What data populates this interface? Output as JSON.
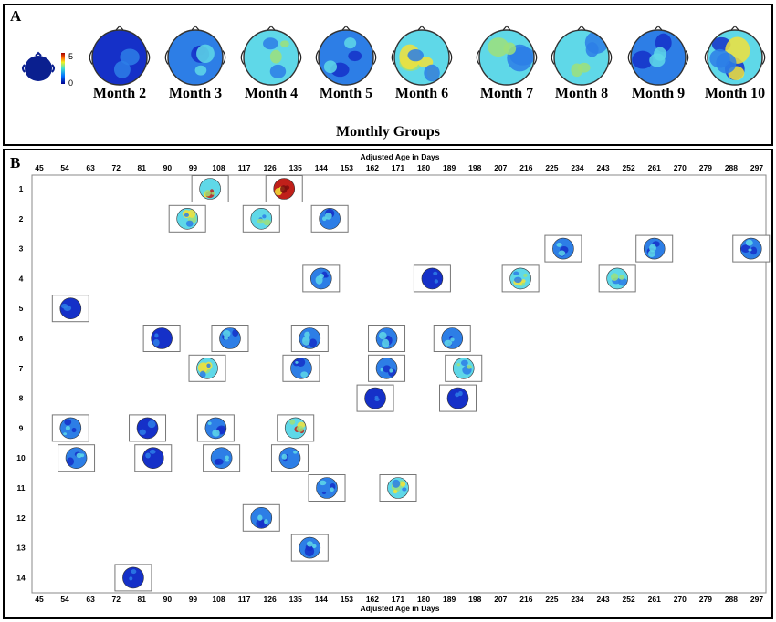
{
  "panel_a": {
    "letter": "A",
    "colorbar": {
      "max_label": "5",
      "min_label": "0"
    },
    "months": [
      {
        "label": "Month 2",
        "palette": "deep"
      },
      {
        "label": "Month 3",
        "palette": "blue"
      },
      {
        "label": "Month 4",
        "palette": "cyan"
      },
      {
        "label": "Month 5",
        "palette": "blue"
      },
      {
        "label": "Month 6",
        "palette": "yellow"
      },
      {
        "label": "Month 7",
        "palette": "cyan"
      },
      {
        "label": "Month 8",
        "palette": "cyan"
      },
      {
        "label": "Month 9",
        "palette": "blue"
      },
      {
        "label": "Month 10",
        "palette": "mixed"
      }
    ],
    "group_title": "Monthly Groups"
  },
  "panel_b": {
    "letter": "B",
    "top_axis_label": "Adjusted Age in Days",
    "bottom_axis_label": "Adjusted Age in Days",
    "x_ticks": [
      45,
      54,
      63,
      72,
      81,
      90,
      99,
      108,
      117,
      126,
      135,
      144,
      153,
      162,
      171,
      180,
      189,
      198,
      207,
      216,
      225,
      234,
      243,
      252,
      261,
      270,
      279,
      288,
      297
    ],
    "y_ticks": [
      1,
      2,
      3,
      4,
      5,
      6,
      7,
      8,
      9,
      10,
      11,
      12,
      13,
      14
    ],
    "colors": {
      "red": "#c0201a",
      "yellow": "#f2e23a",
      "green": "#9ee07a",
      "cyan": "#5fd8e8",
      "blue": "#2d7ee6",
      "navy": "#1530c8"
    }
  },
  "chart_data": {
    "type": "scatter",
    "xlabel": "Adjusted Age in Days",
    "ylabel": "",
    "xlim": [
      45,
      297
    ],
    "ylim": [
      1,
      14
    ],
    "points": [
      {
        "x": 105,
        "y": 1,
        "palette": "hot"
      },
      {
        "x": 131,
        "y": 1,
        "palette": "red"
      },
      {
        "x": 97,
        "y": 2,
        "palette": "yellow"
      },
      {
        "x": 123,
        "y": 2,
        "palette": "cyan"
      },
      {
        "x": 147,
        "y": 2,
        "palette": "blue"
      },
      {
        "x": 229,
        "y": 3,
        "palette": "blue"
      },
      {
        "x": 261,
        "y": 3,
        "palette": "blue"
      },
      {
        "x": 295,
        "y": 3,
        "palette": "blue"
      },
      {
        "x": 144,
        "y": 4,
        "palette": "blue"
      },
      {
        "x": 183,
        "y": 4,
        "palette": "deep"
      },
      {
        "x": 214,
        "y": 4,
        "palette": "yellow"
      },
      {
        "x": 248,
        "y": 4,
        "palette": "cyan"
      },
      {
        "x": 56,
        "y": 5,
        "palette": "deep"
      },
      {
        "x": 88,
        "y": 6,
        "palette": "deep"
      },
      {
        "x": 112,
        "y": 6,
        "palette": "blue"
      },
      {
        "x": 140,
        "y": 6,
        "palette": "blue"
      },
      {
        "x": 167,
        "y": 6,
        "palette": "blue"
      },
      {
        "x": 190,
        "y": 6,
        "palette": "blue"
      },
      {
        "x": 104,
        "y": 7,
        "palette": "yellow"
      },
      {
        "x": 137,
        "y": 7,
        "palette": "blue"
      },
      {
        "x": 167,
        "y": 7,
        "palette": "blue"
      },
      {
        "x": 194,
        "y": 7,
        "palette": "cyan"
      },
      {
        "x": 163,
        "y": 8,
        "palette": "deep"
      },
      {
        "x": 192,
        "y": 8,
        "palette": "deep"
      },
      {
        "x": 56,
        "y": 9,
        "palette": "blue"
      },
      {
        "x": 83,
        "y": 9,
        "palette": "deep"
      },
      {
        "x": 107,
        "y": 9,
        "palette": "blue"
      },
      {
        "x": 135,
        "y": 9,
        "palette": "hot"
      },
      {
        "x": 58,
        "y": 10,
        "palette": "blue"
      },
      {
        "x": 85,
        "y": 10,
        "palette": "deep"
      },
      {
        "x": 109,
        "y": 10,
        "palette": "blue"
      },
      {
        "x": 133,
        "y": 10,
        "palette": "blue"
      },
      {
        "x": 146,
        "y": 11,
        "palette": "blue"
      },
      {
        "x": 171,
        "y": 11,
        "palette": "yellow"
      },
      {
        "x": 123,
        "y": 12,
        "palette": "blue"
      },
      {
        "x": 140,
        "y": 13,
        "palette": "blue"
      },
      {
        "x": 78,
        "y": 14,
        "palette": "deep"
      }
    ]
  }
}
